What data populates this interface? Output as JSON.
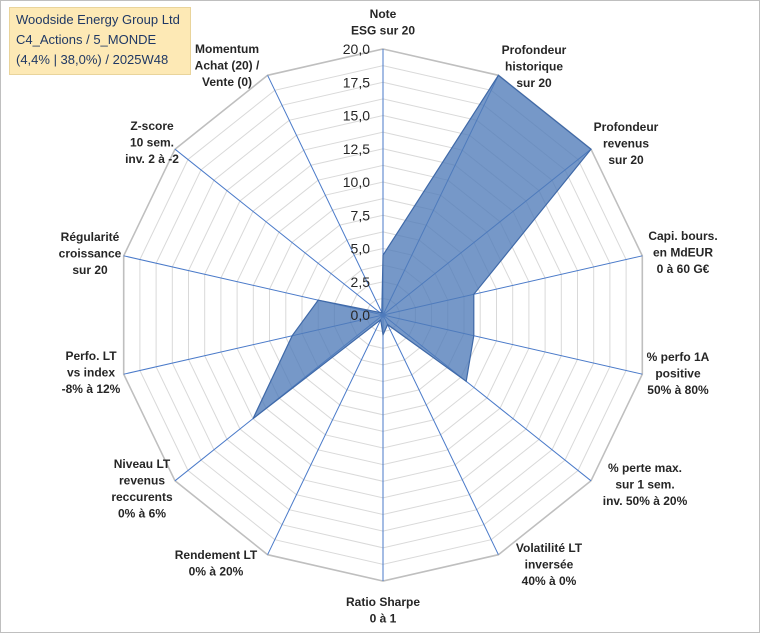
{
  "title_box": {
    "line1": "Woodside Energy Group Ltd",
    "line2": "C4_Actions / 5_MONDE",
    "line3": "(4,4% | 38,0%) / 2025W48"
  },
  "chart_data": {
    "type": "radar",
    "title": "",
    "rmin": 0,
    "rmax": 20,
    "ticks": [
      "0,0",
      "2,5",
      "5,0",
      "7,5",
      "10,0",
      "12,5",
      "15,0",
      "17,5",
      "20,0"
    ],
    "tick_values": [
      0,
      2.5,
      5,
      7.5,
      10,
      12.5,
      15,
      17.5,
      20
    ],
    "grid": true,
    "fill_color": "#4f7bb8",
    "fill_opacity": 0.78,
    "stroke_color": "#3f69a8",
    "grid_color": "#d9d9d9",
    "spoke_color": "#4a7ac9",
    "categories": [
      [
        "Note",
        "ESG sur 20"
      ],
      [
        "Profondeur",
        "historique",
        "sur 20"
      ],
      [
        "Profondeur",
        "revenus",
        "sur 20"
      ],
      [
        "Capi. bours.",
        "en MdEUR",
        "0 à 60 G€"
      ],
      [
        "% perfo 1A",
        "positive",
        "50% à 80%"
      ],
      [
        "% perte max.",
        "sur 1 sem.",
        "inv. 50% à 20%"
      ],
      [
        "Volatilité LT",
        "inversée",
        "40% à 0%"
      ],
      [
        "Ratio Sharpe",
        "0 à 1"
      ],
      [
        "Rendement LT",
        "0% à 20%"
      ],
      [
        "Niveau LT",
        "revenus",
        "reccurents",
        "0% à 6%"
      ],
      [
        "Perfo. LT",
        "vs index",
        "-8% à 12%"
      ],
      [
        "Régularité",
        "croissance",
        "sur 20"
      ],
      [
        "Z-score",
        "10 sem.",
        "inv. 2 à -2"
      ],
      [
        "Momentum",
        "Achat (20) /",
        "Vente (0)"
      ]
    ],
    "values": [
      4.5,
      20,
      20,
      7,
      7,
      8,
      0.8,
      1.5,
      0.4,
      12.5,
      7,
      5,
      0.3,
      0.2
    ]
  }
}
